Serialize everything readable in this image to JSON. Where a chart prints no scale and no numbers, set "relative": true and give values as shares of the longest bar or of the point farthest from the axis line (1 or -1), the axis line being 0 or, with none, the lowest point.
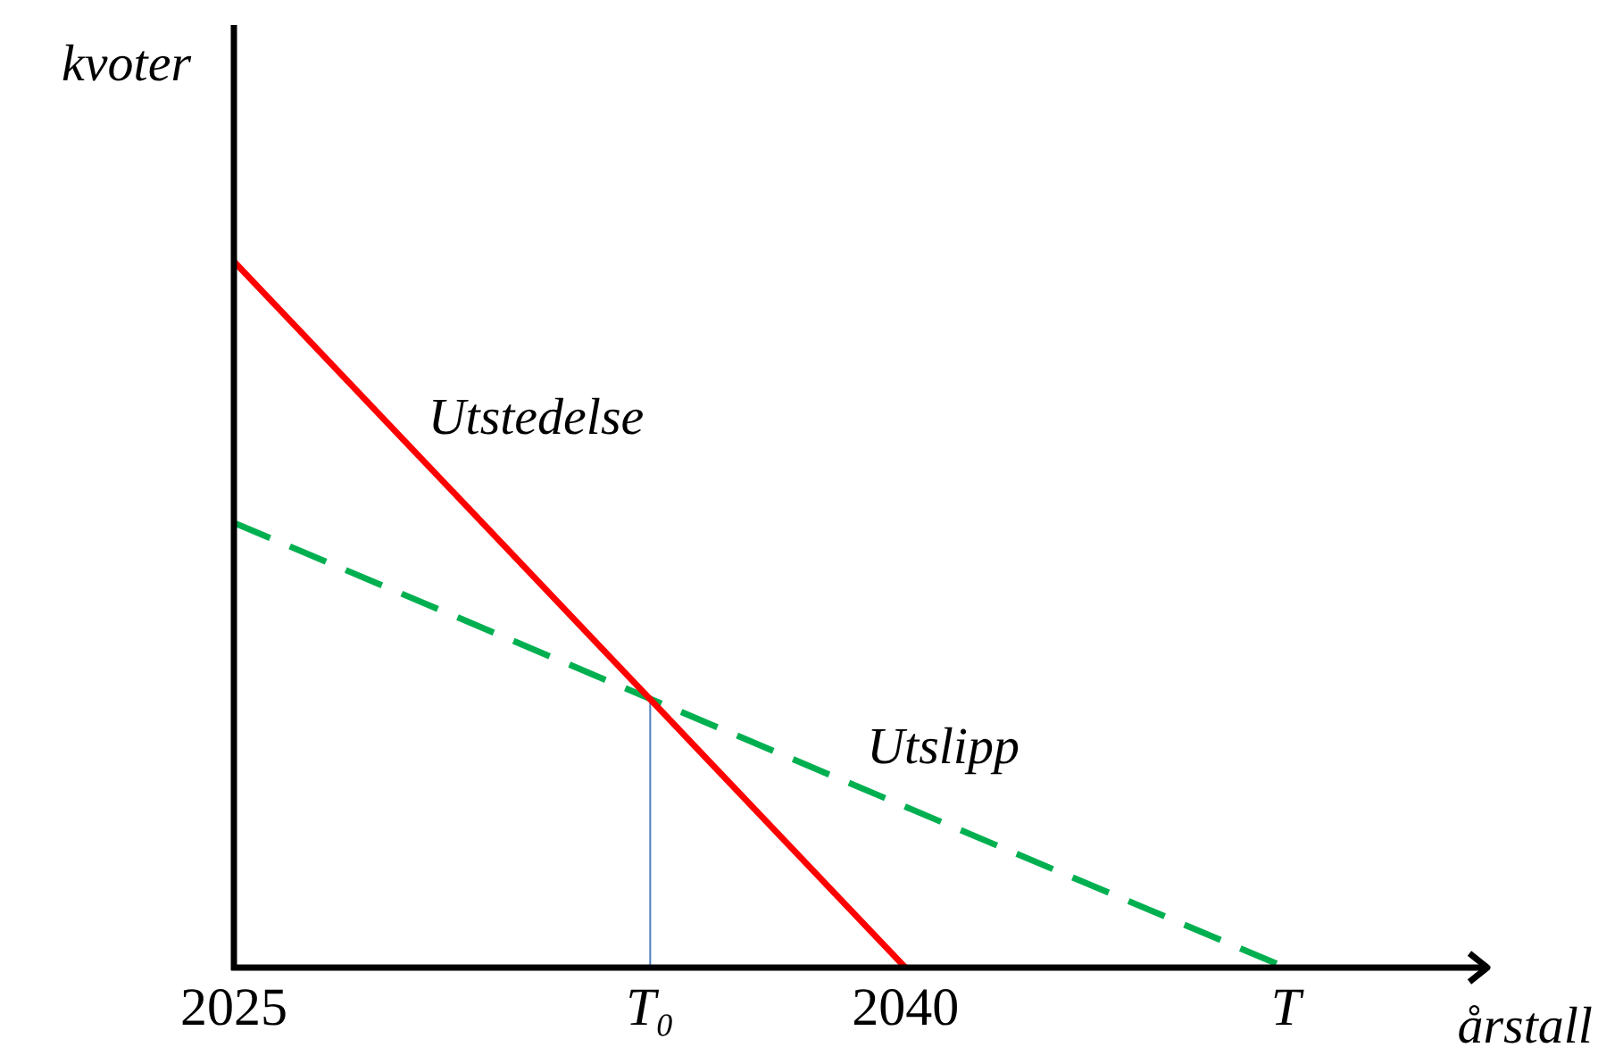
{
  "chart_data": {
    "type": "line",
    "xlabel": "årstall",
    "ylabel": "kvoter",
    "relative": true,
    "marker": "none",
    "grid": false,
    "legend": false,
    "xlim": [
      2025,
      2053
    ],
    "xticks": [
      2025,
      {
        "value": 2034.3,
        "label": "T₀"
      },
      2040,
      {
        "value": 2048.5,
        "label": "T"
      }
    ],
    "series": [
      {
        "name": "Utstedelse",
        "color": "#ff0000",
        "line_style": "solid",
        "x": [
          2025,
          2040
        ],
        "values": [
          1,
          0
        ]
      },
      {
        "name": "Utslipp",
        "color": "#00b050",
        "line_style": "dashed",
        "x": [
          2025,
          2048.5
        ],
        "values": [
          0.63,
          0
        ]
      },
      {
        "color": "#4f81bd",
        "line_style": "solid",
        "x": [
          2034.3,
          2034.3
        ],
        "values": [
          0,
          0.38
        ]
      }
    ]
  }
}
